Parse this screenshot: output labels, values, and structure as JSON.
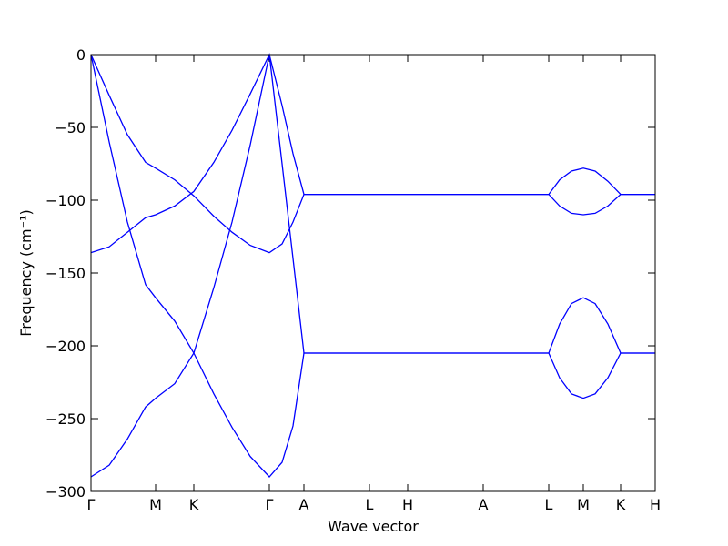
{
  "chart_data": {
    "type": "line",
    "x_label": "Wave vector",
    "y_label": "Frequency (cm⁻¹)",
    "x": [
      0,
      0.2,
      0.4,
      0.6,
      0.71,
      0.92,
      1.13,
      1.35,
      1.55,
      1.75,
      1.96,
      2.1,
      2.22,
      2.34,
      3.06,
      3.48,
      4.31,
      5.03,
      5.15,
      5.28,
      5.41,
      5.54,
      5.68,
      5.82,
      6.2
    ],
    "series": [
      {
        "color": "#0000ff",
        "values": [
          0,
          -28,
          -55,
          -74,
          -78,
          -86,
          -97,
          -111,
          -122,
          -131,
          -136,
          -130,
          -115,
          -96,
          -96,
          -96,
          -96,
          -96,
          -86,
          -80,
          -78,
          -80,
          -87,
          -96,
          -96
        ]
      },
      {
        "color": "#0000ff",
        "values": [
          -136,
          -132,
          -122,
          -112,
          -110,
          -104,
          -94,
          -74,
          -52,
          -27,
          0,
          -35,
          -68,
          -96,
          -96,
          -96,
          -96,
          -96,
          -104,
          -109,
          -110,
          -109,
          -104,
          -96,
          -96
        ]
      },
      {
        "color": "#0000ff",
        "values": [
          0,
          -60,
          -115,
          -158,
          -167,
          -183,
          -205,
          -233,
          -256,
          -276,
          -290,
          -280,
          -255,
          -205,
          -205,
          -205,
          -205,
          -205,
          -222,
          -233,
          -236,
          -233,
          -222,
          -205,
          -205
        ]
      },
      {
        "color": "#0000ff",
        "values": [
          -290,
          -282,
          -264,
          -242,
          -236,
          -226,
          -205,
          -160,
          -115,
          -62,
          0,
          -75,
          -140,
          -205,
          -205,
          -205,
          -205,
          -205,
          -185,
          -171,
          -167,
          -171,
          -185,
          -205,
          -205
        ]
      }
    ],
    "xlim": [
      0,
      6.2
    ],
    "xticks": [
      {
        "value": 0,
        "label": "Γ"
      },
      {
        "value": 0.71,
        "label": "M"
      },
      {
        "value": 1.13,
        "label": "K"
      },
      {
        "value": 1.96,
        "label": "Γ"
      },
      {
        "value": 2.34,
        "label": "A"
      },
      {
        "value": 3.06,
        "label": "L"
      },
      {
        "value": 3.48,
        "label": "H"
      },
      {
        "value": 4.31,
        "label": "A"
      },
      {
        "value": 5.03,
        "label": "L"
      },
      {
        "value": 5.41,
        "label": "M"
      },
      {
        "value": 5.82,
        "label": "K"
      },
      {
        "value": 6.2,
        "label": "H"
      }
    ],
    "ylim": [
      -300,
      0
    ],
    "yticks": [
      {
        "value": -300,
        "label": "−300"
      },
      {
        "value": -250,
        "label": "−250"
      },
      {
        "value": -200,
        "label": "−200"
      },
      {
        "value": -150,
        "label": "−150"
      },
      {
        "value": -100,
        "label": "−100"
      },
      {
        "value": -50,
        "label": "−50"
      },
      0
    ],
    "grid": false
  }
}
